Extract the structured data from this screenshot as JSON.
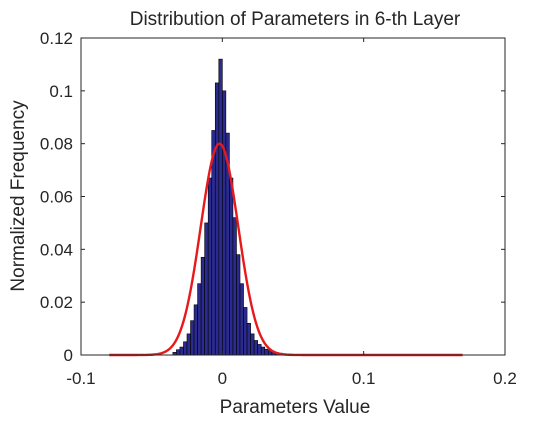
{
  "chart_data": {
    "type": "bar",
    "title": "Distribution of Parameters in 6-th Layer",
    "xlabel": "Parameters Value",
    "ylabel": "Normalized Frequency",
    "xlim": [
      -0.1,
      0.2
    ],
    "ylim": [
      0,
      0.12
    ],
    "x_ticks": [
      "-0.1",
      "0",
      "0.1",
      "0.2"
    ],
    "y_ticks": [
      "0",
      "0.02",
      "0.04",
      "0.06",
      "0.08",
      "0.1",
      "0.12"
    ],
    "grid": false,
    "legend": "none",
    "histogram": {
      "bin_width": 0.0025,
      "bin_centers": [
        -0.03375,
        -0.03125,
        -0.02875,
        -0.02625,
        -0.02375,
        -0.02125,
        -0.01875,
        -0.01625,
        -0.01375,
        -0.01125,
        -0.00875,
        -0.00625,
        -0.00375,
        -0.00125,
        0.00125,
        0.00375,
        0.00625,
        0.00875,
        0.01125,
        0.01375,
        0.01625,
        0.01875,
        0.02125,
        0.02375,
        0.02625,
        0.02875,
        0.03125,
        0.03375,
        0.03625,
        0.03875,
        0.04125,
        0.04375,
        0.04625,
        0.04875,
        0.05125,
        0.05375
      ],
      "values": [
        0.001,
        0.002,
        0.003,
        0.005,
        0.008,
        0.013,
        0.019,
        0.027,
        0.037,
        0.05,
        0.067,
        0.085,
        0.103,
        0.112,
        0.1,
        0.084,
        0.067,
        0.052,
        0.038,
        0.027,
        0.018,
        0.012,
        0.008,
        0.0055,
        0.004,
        0.003,
        0.0022,
        0.0016,
        0.0012,
        0.0009,
        0.0007,
        0.0005,
        0.0004,
        0.0003,
        0.0002,
        0.0001
      ],
      "color": "#2b2b8f",
      "edge_color": "#000000"
    },
    "fit_curve": {
      "kind": "gaussian",
      "mean": -0.002,
      "peak": 0.08,
      "sigma": 0.0133,
      "x_range": [
        -0.08,
        0.17
      ],
      "color": "#e8191b"
    },
    "colors": {
      "axis": "#262626",
      "background": "#ffffff"
    }
  }
}
